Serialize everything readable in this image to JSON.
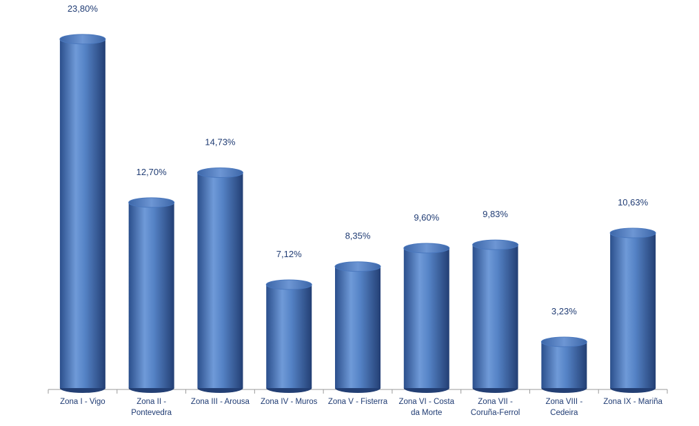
{
  "chart_data": {
    "type": "bar",
    "categories": [
      "Zona I - Vigo",
      "Zona II - Pontevedra",
      "Zona III - Arousa",
      "Zona IV - Muros",
      "Zona V - Fisterra",
      "Zona VI - Costa da Morte",
      "Zona VII - Coruña-Ferrol",
      "Zona VIII - Cedeira",
      "Zona IX - Mariña"
    ],
    "values": [
      23.8,
      12.7,
      14.73,
      7.12,
      8.35,
      9.6,
      9.83,
      3.23,
      10.63
    ],
    "value_labels": [
      "23,80%",
      "12,70%",
      "14,73%",
      "7,12%",
      "8,35%",
      "9,60%",
      "9,83%",
      "3,23%",
      "10,63%"
    ],
    "color": "#4a78be"
  }
}
